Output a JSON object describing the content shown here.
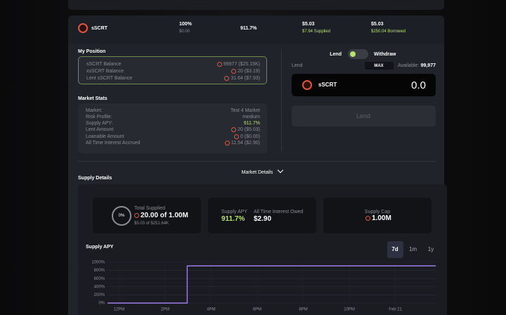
{
  "top_row": {
    "asset": "sSCRT",
    "col1": "100%",
    "col1_sub": "$0.00",
    "apy": "911.7%",
    "supplied": "$5.03",
    "supplied_sub": "$7.94 Supplied",
    "borrowed": "$5.03",
    "borrowed_sub": "$250.04 Borrowed"
  },
  "my_position": {
    "title": "My Position",
    "rows": [
      [
        "sSCRT Balance",
        "99977 ($25.15K)"
      ],
      [
        "xsSCRT Balance",
        "20 ($3.19)"
      ],
      [
        "Lent sSCRT Balance",
        "31.64 ($7.93)"
      ]
    ]
  },
  "market_stats": {
    "title": "Market Stats",
    "rows": [
      [
        "Market:",
        "Test 4 Market"
      ],
      [
        "Risk Profile:",
        "medium"
      ],
      [
        "Supply APY:",
        "911.7%"
      ],
      [
        "Lent Amount",
        "20 ($5.03)"
      ],
      [
        "Loanable Amount",
        "0 ($0.00)"
      ],
      [
        "All Time Interest Accrued",
        "11.54 ($2.90)"
      ]
    ]
  },
  "lend_panel": {
    "tab_lend": "Lend",
    "tab_withdraw": "Withdraw",
    "label": "Lend",
    "max": "MAX",
    "available_label": "Available:",
    "available": "99,977",
    "asset": "sSCRT",
    "amount": "0.0",
    "button": "Lend"
  },
  "market_details": "Market Details",
  "supply_details": {
    "title": "Supply Details",
    "utilization": "0%",
    "total_supplied_label": "Total Supplied",
    "total_supplied": "20.00 of 1.00M",
    "total_supplied_usd": "$5.03 of $251.64K",
    "supply_apy_label": "Supply APY",
    "supply_apy": "911.7%",
    "interest_label": "All Time Interest Owed",
    "interest": "$2.90",
    "cap_label": "Supply Cap",
    "cap": "1.00M"
  },
  "chart_data": {
    "type": "line",
    "title": "Supply APY",
    "ranges": [
      "7d",
      "1m",
      "1y"
    ],
    "selected_range": 0,
    "x": [
      11.5,
      14.96,
      14.96,
      25.75
    ],
    "series": [
      {
        "name": "Supply APY",
        "color": "#a07ee8",
        "values": [
          0,
          0,
          911.7,
          911.7
        ]
      }
    ],
    "xlim": [
      11.5,
      25.75
    ],
    "ylim": [
      0,
      1000
    ],
    "xticks": [
      {
        "value": 12,
        "label": "12PM"
      },
      {
        "value": 14,
        "label": "2PM"
      },
      {
        "value": 16,
        "label": "4PM"
      },
      {
        "value": 18,
        "label": "6PM"
      },
      {
        "value": 20,
        "label": "8PM"
      },
      {
        "value": 22,
        "label": "10PM"
      },
      {
        "value": 24,
        "label": "Feb 21"
      }
    ],
    "yticks": [
      {
        "value": 0,
        "label": "0%"
      },
      {
        "value": 200,
        "label": "200%"
      },
      {
        "value": 400,
        "label": "400%"
      },
      {
        "value": 600,
        "label": "600%"
      },
      {
        "value": 800,
        "label": "800%"
      },
      {
        "value": 1000,
        "label": "1000%"
      }
    ],
    "grid": true
  }
}
